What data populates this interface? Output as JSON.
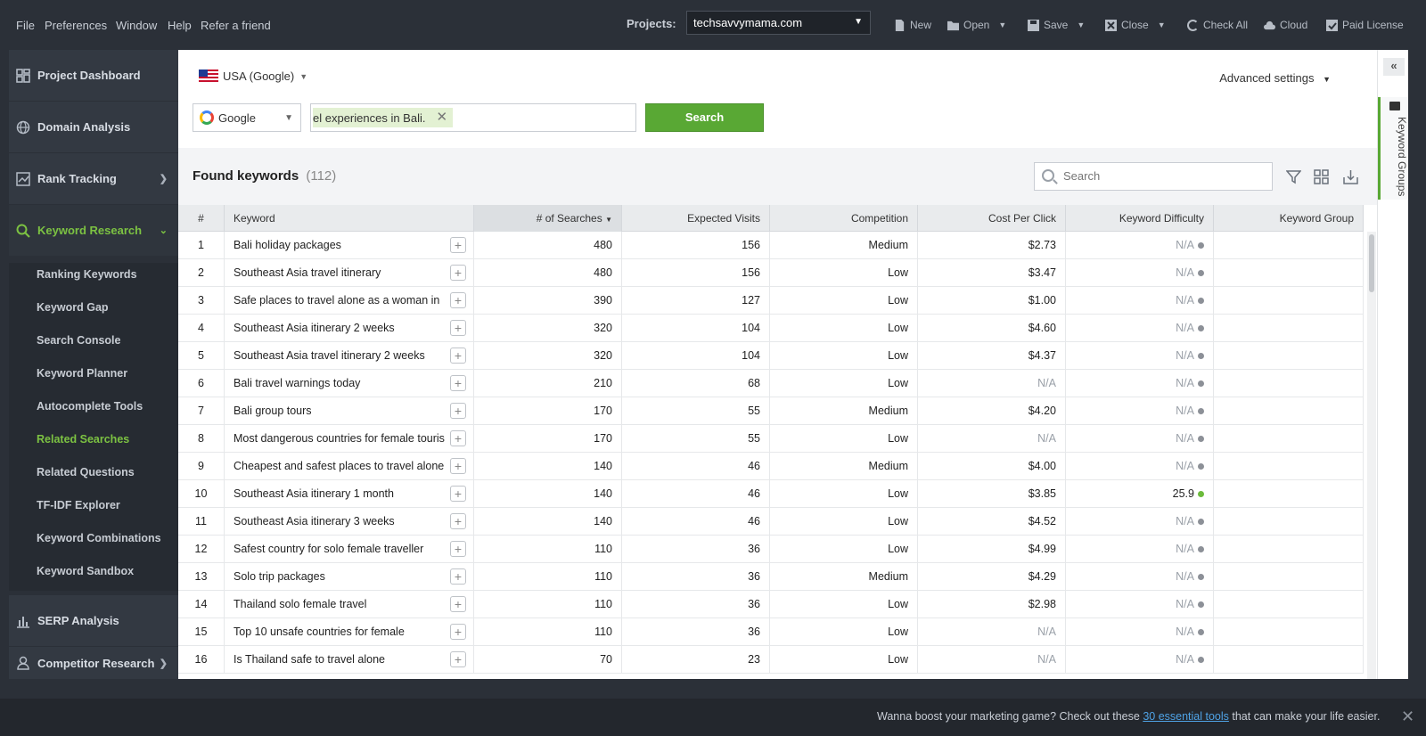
{
  "menu": {
    "file": "File",
    "preferences": "Preferences",
    "window": "Window",
    "help": "Help",
    "refer": "Refer a friend"
  },
  "projects": {
    "label": "Projects:",
    "selected": "techsavvymama.com"
  },
  "toolbar": {
    "new": "New",
    "open": "Open",
    "save": "Save",
    "close": "Close",
    "check_all": "Check All",
    "cloud": "Cloud",
    "paid_license": "Paid License"
  },
  "sidebar": {
    "sections": [
      {
        "label": "Project Dashboard",
        "icon": "dashboard-icon"
      },
      {
        "label": "Domain Analysis",
        "icon": "globe-icon"
      },
      {
        "label": "Rank Tracking",
        "icon": "chart-line-icon"
      },
      {
        "label": "Keyword Research",
        "icon": "search-icon"
      },
      {
        "label": "SERP Analysis",
        "icon": "bar-chart-icon"
      },
      {
        "label": "Competitor Research",
        "icon": "user-icon"
      }
    ],
    "sub_items": [
      "Ranking Keywords",
      "Keyword Gap",
      "Search Console",
      "Keyword Planner",
      "Autocomplete Tools",
      "Related Searches",
      "Related Questions",
      "TF-IDF Explorer",
      "Keyword Combinations",
      "Keyword Sandbox"
    ],
    "active_sub": "Related Searches"
  },
  "search_panel": {
    "country": "USA (Google)",
    "advanced": "Advanced settings",
    "engine": "Google",
    "keyword_tag": "el experiences in Bali.",
    "search_button": "Search"
  },
  "results": {
    "title": "Found keywords",
    "count": "(112)",
    "search_placeholder": "Search"
  },
  "table": {
    "headers": [
      "#",
      "Keyword",
      "# of Searches",
      "Expected Visits",
      "Competition",
      "Cost Per Click",
      "Keyword Difficulty",
      "Keyword Group"
    ],
    "rows": [
      {
        "n": "1",
        "kw": "Bali holiday packages",
        "s": "480",
        "v": "156",
        "c": "Medium",
        "p": "$2.73",
        "d": "N/A"
      },
      {
        "n": "2",
        "kw": "Southeast Asia travel itinerary",
        "s": "480",
        "v": "156",
        "c": "Low",
        "p": "$3.47",
        "d": "N/A"
      },
      {
        "n": "3",
        "kw": "Safe places to travel alone as a woman in",
        "s": "390",
        "v": "127",
        "c": "Low",
        "p": "$1.00",
        "d": "N/A"
      },
      {
        "n": "4",
        "kw": "Southeast Asia itinerary 2 weeks",
        "s": "320",
        "v": "104",
        "c": "Low",
        "p": "$4.60",
        "d": "N/A"
      },
      {
        "n": "5",
        "kw": "Southeast Asia travel itinerary 2 weeks",
        "s": "320",
        "v": "104",
        "c": "Low",
        "p": "$4.37",
        "d": "N/A"
      },
      {
        "n": "6",
        "kw": "Bali travel warnings today",
        "s": "210",
        "v": "68",
        "c": "Low",
        "p": "N/A",
        "d": "N/A"
      },
      {
        "n": "7",
        "kw": "Bali group tours",
        "s": "170",
        "v": "55",
        "c": "Medium",
        "p": "$4.20",
        "d": "N/A"
      },
      {
        "n": "8",
        "kw": "Most dangerous countries for female touris",
        "s": "170",
        "v": "55",
        "c": "Low",
        "p": "N/A",
        "d": "N/A"
      },
      {
        "n": "9",
        "kw": "Cheapest and safest places to travel alone",
        "s": "140",
        "v": "46",
        "c": "Medium",
        "p": "$4.00",
        "d": "N/A"
      },
      {
        "n": "10",
        "kw": "Southeast Asia itinerary 1 month",
        "s": "140",
        "v": "46",
        "c": "Low",
        "p": "$3.85",
        "d": "25.9"
      },
      {
        "n": "11",
        "kw": "Southeast Asia itinerary 3 weeks",
        "s": "140",
        "v": "46",
        "c": "Low",
        "p": "$4.52",
        "d": "N/A"
      },
      {
        "n": "12",
        "kw": "Safest country for solo female traveller",
        "s": "110",
        "v": "36",
        "c": "Low",
        "p": "$4.99",
        "d": "N/A"
      },
      {
        "n": "13",
        "kw": "Solo trip packages",
        "s": "110",
        "v": "36",
        "c": "Medium",
        "p": "$4.29",
        "d": "N/A"
      },
      {
        "n": "14",
        "kw": "Thailand solo female travel",
        "s": "110",
        "v": "36",
        "c": "Low",
        "p": "$2.98",
        "d": "N/A"
      },
      {
        "n": "15",
        "kw": "Top 10 unsafe countries for female",
        "s": "110",
        "v": "36",
        "c": "Low",
        "p": "N/A",
        "d": "N/A"
      },
      {
        "n": "16",
        "kw": "Is Thailand safe to travel alone",
        "s": "70",
        "v": "23",
        "c": "Low",
        "p": "N/A",
        "d": "N/A"
      }
    ]
  },
  "rail": {
    "collapse": "«",
    "tab_label": "Keyword Groups"
  },
  "promo": {
    "before": "Wanna boost your marketing game? Check out these ",
    "link": "30 essential tools",
    "after": " that can make your life easier.",
    "close": "✕"
  },
  "colors": {
    "accent": "#7cc242",
    "button": "#59a834",
    "dark_bg": "#2b3038"
  }
}
